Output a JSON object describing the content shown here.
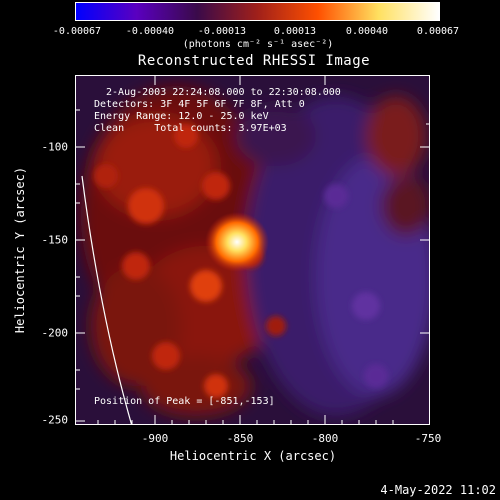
{
  "colorbar": {
    "ticks": [
      "-0.00067",
      "-0.00040",
      "-0.00013",
      "0.00013",
      "0.00040",
      "0.00067"
    ],
    "units": "(photons cm⁻² s⁻¹ asec⁻²)",
    "colors": [
      "#0000ff",
      "#5a00c0",
      "#3a0a4a",
      "#a0201a",
      "#ff5000",
      "#ffe060",
      "#ffffff"
    ]
  },
  "title": "Reconstructed RHESSI Image",
  "info_lines": [
    " 2-Aug-2003 22:24:08.000 to 22:30:08.000",
    "Detectors: 3F 4F 5F 6F 7F 8F, Att 0",
    "Energy Range: 12.0 - 25.0 keV",
    "Clean     Total counts: 3.97E+03"
  ],
  "peak_text": "Position of Peak = [-851,-153]",
  "axes": {
    "xlabel": "Heliocentric X (arcsec)",
    "ylabel": "Heliocentric Y (arcsec)",
    "xticks": [
      "-900",
      "-850",
      "-800",
      "-750"
    ],
    "yticks": [
      "-100",
      "-150",
      "-200",
      "-250"
    ],
    "xlim": [
      -940,
      -750
    ],
    "ylim": [
      -252,
      -72
    ]
  },
  "date_stamp": "4-May-2022 11:02"
}
